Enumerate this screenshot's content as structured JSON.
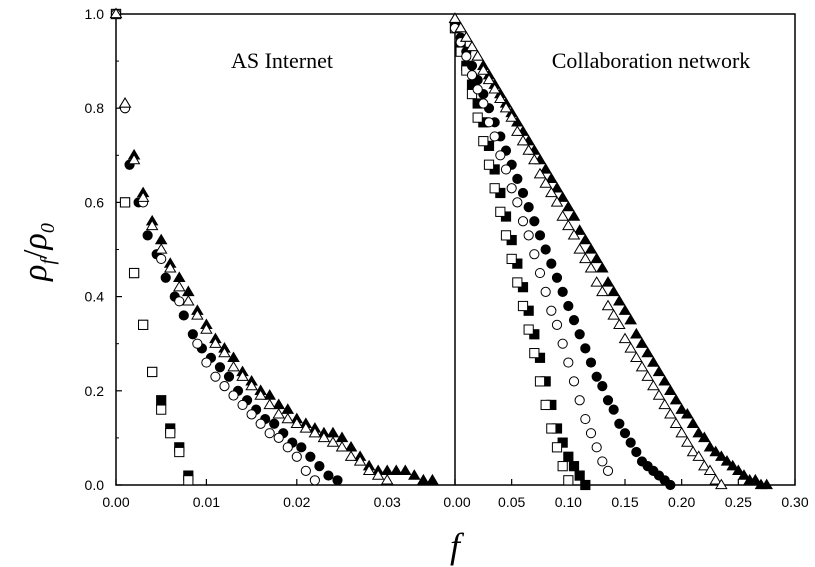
{
  "chart_data": [
    {
      "type": "scatter",
      "title": "AS Internet",
      "xlim": [
        0,
        0.0375
      ],
      "ylim": [
        0,
        1.0
      ],
      "xticks": [
        "0.00",
        "0.01",
        "0.02",
        "0.03"
      ],
      "yticks": [
        "0.0",
        "0.2",
        "0.4",
        "0.6",
        "0.8",
        "1.0"
      ],
      "grid": false,
      "series": [
        {
          "marker": "square-filled",
          "color": "#000000",
          "x": [
            0.0,
            0.001,
            0.002,
            0.003,
            0.004,
            0.005,
            0.006,
            0.007,
            0.008
          ],
          "y": [
            1.0,
            0.6,
            0.45,
            0.34,
            0.24,
            0.18,
            0.12,
            0.08,
            0.02
          ]
        },
        {
          "marker": "square-open",
          "color": "#000000",
          "x": [
            0.0,
            0.001,
            0.002,
            0.003,
            0.004,
            0.005,
            0.006,
            0.007,
            0.008
          ],
          "y": [
            1.0,
            0.6,
            0.45,
            0.34,
            0.24,
            0.16,
            0.11,
            0.07,
            0.01
          ]
        },
        {
          "marker": "circle-filled",
          "color": "#000000",
          "x": [
            0.0,
            0.001,
            0.0015,
            0.0025,
            0.0035,
            0.0045,
            0.0055,
            0.0065,
            0.0075,
            0.0085,
            0.0095,
            0.0105,
            0.0115,
            0.0125,
            0.0135,
            0.0145,
            0.0155,
            0.0165,
            0.0175,
            0.0185,
            0.0195,
            0.0205,
            0.0215,
            0.0225,
            0.0235,
            0.0245
          ],
          "y": [
            1.0,
            0.8,
            0.68,
            0.6,
            0.53,
            0.49,
            0.44,
            0.4,
            0.36,
            0.32,
            0.29,
            0.27,
            0.25,
            0.23,
            0.2,
            0.18,
            0.16,
            0.14,
            0.13,
            0.11,
            0.09,
            0.08,
            0.06,
            0.04,
            0.02,
            0.01
          ]
        },
        {
          "marker": "circle-open",
          "color": "#000000",
          "x": [
            0.0,
            0.001,
            0.003,
            0.005,
            0.007,
            0.009,
            0.01,
            0.011,
            0.012,
            0.013,
            0.014,
            0.015,
            0.016,
            0.017,
            0.018,
            0.019,
            0.02,
            0.021,
            0.022
          ],
          "y": [
            1.0,
            0.8,
            0.6,
            0.48,
            0.39,
            0.3,
            0.26,
            0.23,
            0.21,
            0.19,
            0.17,
            0.15,
            0.13,
            0.11,
            0.1,
            0.08,
            0.06,
            0.03,
            0.01
          ]
        },
        {
          "marker": "triangle-filled",
          "color": "#000000",
          "x": [
            0.0,
            0.001,
            0.002,
            0.003,
            0.004,
            0.005,
            0.006,
            0.007,
            0.008,
            0.009,
            0.01,
            0.011,
            0.012,
            0.013,
            0.014,
            0.015,
            0.016,
            0.017,
            0.018,
            0.019,
            0.02,
            0.021,
            0.022,
            0.023,
            0.024,
            0.025,
            0.026,
            0.027,
            0.028,
            0.029,
            0.03,
            0.031,
            0.032,
            0.033,
            0.034,
            0.035
          ],
          "y": [
            1.0,
            0.81,
            0.7,
            0.62,
            0.56,
            0.52,
            0.47,
            0.44,
            0.41,
            0.37,
            0.34,
            0.31,
            0.29,
            0.27,
            0.24,
            0.22,
            0.2,
            0.19,
            0.17,
            0.16,
            0.14,
            0.13,
            0.12,
            0.11,
            0.11,
            0.1,
            0.08,
            0.06,
            0.04,
            0.03,
            0.03,
            0.03,
            0.03,
            0.02,
            0.01,
            0.01
          ]
        },
        {
          "marker": "triangle-open",
          "color": "#000000",
          "x": [
            0.0,
            0.001,
            0.002,
            0.003,
            0.004,
            0.005,
            0.006,
            0.007,
            0.008,
            0.009,
            0.01,
            0.011,
            0.012,
            0.013,
            0.014,
            0.015,
            0.016,
            0.017,
            0.018,
            0.019,
            0.02,
            0.021,
            0.022,
            0.023,
            0.024,
            0.025,
            0.026,
            0.027,
            0.028,
            0.029,
            0.03
          ],
          "y": [
            1.0,
            0.81,
            0.69,
            0.61,
            0.55,
            0.5,
            0.46,
            0.42,
            0.39,
            0.36,
            0.33,
            0.3,
            0.28,
            0.25,
            0.23,
            0.21,
            0.19,
            0.17,
            0.15,
            0.14,
            0.13,
            0.12,
            0.11,
            0.1,
            0.09,
            0.08,
            0.06,
            0.05,
            0.03,
            0.02,
            0.01
          ]
        }
      ]
    },
    {
      "type": "scatter",
      "title": "Collaboration network",
      "xlim": [
        0,
        0.3
      ],
      "ylim": [
        0,
        1.0
      ],
      "xticks": [
        "0.00",
        "0.05",
        "0.10",
        "0.15",
        "0.20",
        "0.25",
        "0.30"
      ],
      "grid": false,
      "series": [
        {
          "marker": "square-filled",
          "color": "#000000",
          "x": [
            0.0,
            0.005,
            0.01,
            0.015,
            0.02,
            0.025,
            0.03,
            0.035,
            0.04,
            0.045,
            0.05,
            0.055,
            0.06,
            0.065,
            0.07,
            0.075,
            0.08,
            0.085,
            0.09,
            0.095,
            0.1,
            0.105,
            0.11,
            0.115
          ],
          "y": [
            0.97,
            0.93,
            0.89,
            0.85,
            0.81,
            0.77,
            0.72,
            0.67,
            0.62,
            0.57,
            0.52,
            0.47,
            0.42,
            0.37,
            0.32,
            0.27,
            0.22,
            0.17,
            0.12,
            0.09,
            0.06,
            0.04,
            0.02,
            0.0
          ]
        },
        {
          "marker": "square-open",
          "color": "#000000",
          "x": [
            0.0,
            0.005,
            0.01,
            0.015,
            0.02,
            0.025,
            0.03,
            0.035,
            0.04,
            0.045,
            0.05,
            0.055,
            0.06,
            0.065,
            0.07,
            0.075,
            0.08,
            0.085,
            0.09,
            0.095,
            0.1
          ],
          "y": [
            0.97,
            0.92,
            0.88,
            0.83,
            0.78,
            0.73,
            0.68,
            0.63,
            0.58,
            0.53,
            0.48,
            0.43,
            0.38,
            0.33,
            0.28,
            0.22,
            0.17,
            0.12,
            0.08,
            0.04,
            0.01
          ]
        },
        {
          "marker": "circle-filled",
          "color": "#000000",
          "x": [
            0.0,
            0.005,
            0.01,
            0.015,
            0.02,
            0.025,
            0.03,
            0.035,
            0.04,
            0.045,
            0.05,
            0.055,
            0.06,
            0.065,
            0.07,
            0.075,
            0.08,
            0.085,
            0.09,
            0.095,
            0.1,
            0.105,
            0.11,
            0.115,
            0.12,
            0.125,
            0.13,
            0.135,
            0.14,
            0.145,
            0.15,
            0.155,
            0.16,
            0.165,
            0.17,
            0.175,
            0.18,
            0.185,
            0.19
          ],
          "y": [
            0.98,
            0.95,
            0.92,
            0.89,
            0.86,
            0.83,
            0.8,
            0.77,
            0.74,
            0.71,
            0.68,
            0.65,
            0.62,
            0.59,
            0.56,
            0.53,
            0.5,
            0.47,
            0.44,
            0.41,
            0.38,
            0.35,
            0.32,
            0.29,
            0.26,
            0.23,
            0.21,
            0.18,
            0.16,
            0.13,
            0.11,
            0.09,
            0.07,
            0.05,
            0.04,
            0.03,
            0.02,
            0.01,
            0.0
          ]
        },
        {
          "marker": "circle-open",
          "color": "#000000",
          "x": [
            0.0,
            0.005,
            0.01,
            0.015,
            0.02,
            0.025,
            0.03,
            0.035,
            0.04,
            0.045,
            0.05,
            0.055,
            0.06,
            0.065,
            0.07,
            0.075,
            0.08,
            0.085,
            0.09,
            0.095,
            0.1,
            0.105,
            0.11,
            0.115,
            0.12,
            0.125,
            0.13,
            0.135
          ],
          "y": [
            0.97,
            0.94,
            0.91,
            0.87,
            0.84,
            0.81,
            0.77,
            0.74,
            0.7,
            0.67,
            0.63,
            0.6,
            0.56,
            0.53,
            0.49,
            0.45,
            0.41,
            0.37,
            0.34,
            0.3,
            0.26,
            0.22,
            0.18,
            0.14,
            0.11,
            0.08,
            0.05,
            0.03
          ]
        },
        {
          "marker": "triangle-filled",
          "color": "#000000",
          "x": [
            0.0,
            0.005,
            0.01,
            0.015,
            0.02,
            0.025,
            0.03,
            0.035,
            0.04,
            0.045,
            0.05,
            0.055,
            0.06,
            0.065,
            0.07,
            0.075,
            0.08,
            0.085,
            0.09,
            0.095,
            0.1,
            0.105,
            0.11,
            0.115,
            0.12,
            0.125,
            0.13,
            0.135,
            0.14,
            0.145,
            0.15,
            0.155,
            0.16,
            0.165,
            0.17,
            0.175,
            0.18,
            0.185,
            0.19,
            0.195,
            0.2,
            0.205,
            0.21,
            0.215,
            0.22,
            0.225,
            0.23,
            0.235,
            0.24,
            0.245,
            0.25,
            0.255,
            0.26,
            0.265,
            0.27,
            0.275
          ],
          "y": [
            0.99,
            0.97,
            0.95,
            0.93,
            0.91,
            0.89,
            0.87,
            0.85,
            0.83,
            0.81,
            0.79,
            0.77,
            0.75,
            0.73,
            0.71,
            0.69,
            0.67,
            0.65,
            0.63,
            0.61,
            0.59,
            0.57,
            0.54,
            0.52,
            0.5,
            0.48,
            0.46,
            0.43,
            0.41,
            0.39,
            0.37,
            0.35,
            0.32,
            0.3,
            0.28,
            0.26,
            0.24,
            0.22,
            0.2,
            0.18,
            0.16,
            0.15,
            0.13,
            0.11,
            0.1,
            0.08,
            0.07,
            0.06,
            0.05,
            0.04,
            0.03,
            0.02,
            0.01,
            0.01,
            0.0,
            0.0
          ]
        },
        {
          "marker": "triangle-open",
          "color": "#000000",
          "x": [
            0.0,
            0.005,
            0.01,
            0.015,
            0.02,
            0.025,
            0.03,
            0.035,
            0.04,
            0.045,
            0.05,
            0.055,
            0.06,
            0.065,
            0.07,
            0.075,
            0.08,
            0.085,
            0.09,
            0.095,
            0.1,
            0.105,
            0.11,
            0.115,
            0.12,
            0.125,
            0.13,
            0.135,
            0.14,
            0.145,
            0.15,
            0.155,
            0.16,
            0.165,
            0.17,
            0.175,
            0.18,
            0.185,
            0.19,
            0.195,
            0.2,
            0.205,
            0.21,
            0.215,
            0.22,
            0.225,
            0.23,
            0.235
          ],
          "y": [
            0.99,
            0.97,
            0.95,
            0.93,
            0.91,
            0.88,
            0.86,
            0.84,
            0.82,
            0.8,
            0.78,
            0.75,
            0.73,
            0.71,
            0.69,
            0.66,
            0.64,
            0.62,
            0.6,
            0.57,
            0.55,
            0.53,
            0.5,
            0.48,
            0.46,
            0.43,
            0.41,
            0.38,
            0.36,
            0.34,
            0.31,
            0.29,
            0.27,
            0.25,
            0.23,
            0.21,
            0.19,
            0.17,
            0.15,
            0.13,
            0.11,
            0.09,
            0.07,
            0.06,
            0.04,
            0.03,
            0.01,
            0.0
          ]
        }
      ]
    }
  ],
  "ylabel_rho": "ρ",
  "ylabel_sub_f": "f",
  "ylabel_slash": "/",
  "ylabel_sub_0": "0",
  "xlabel": "f"
}
